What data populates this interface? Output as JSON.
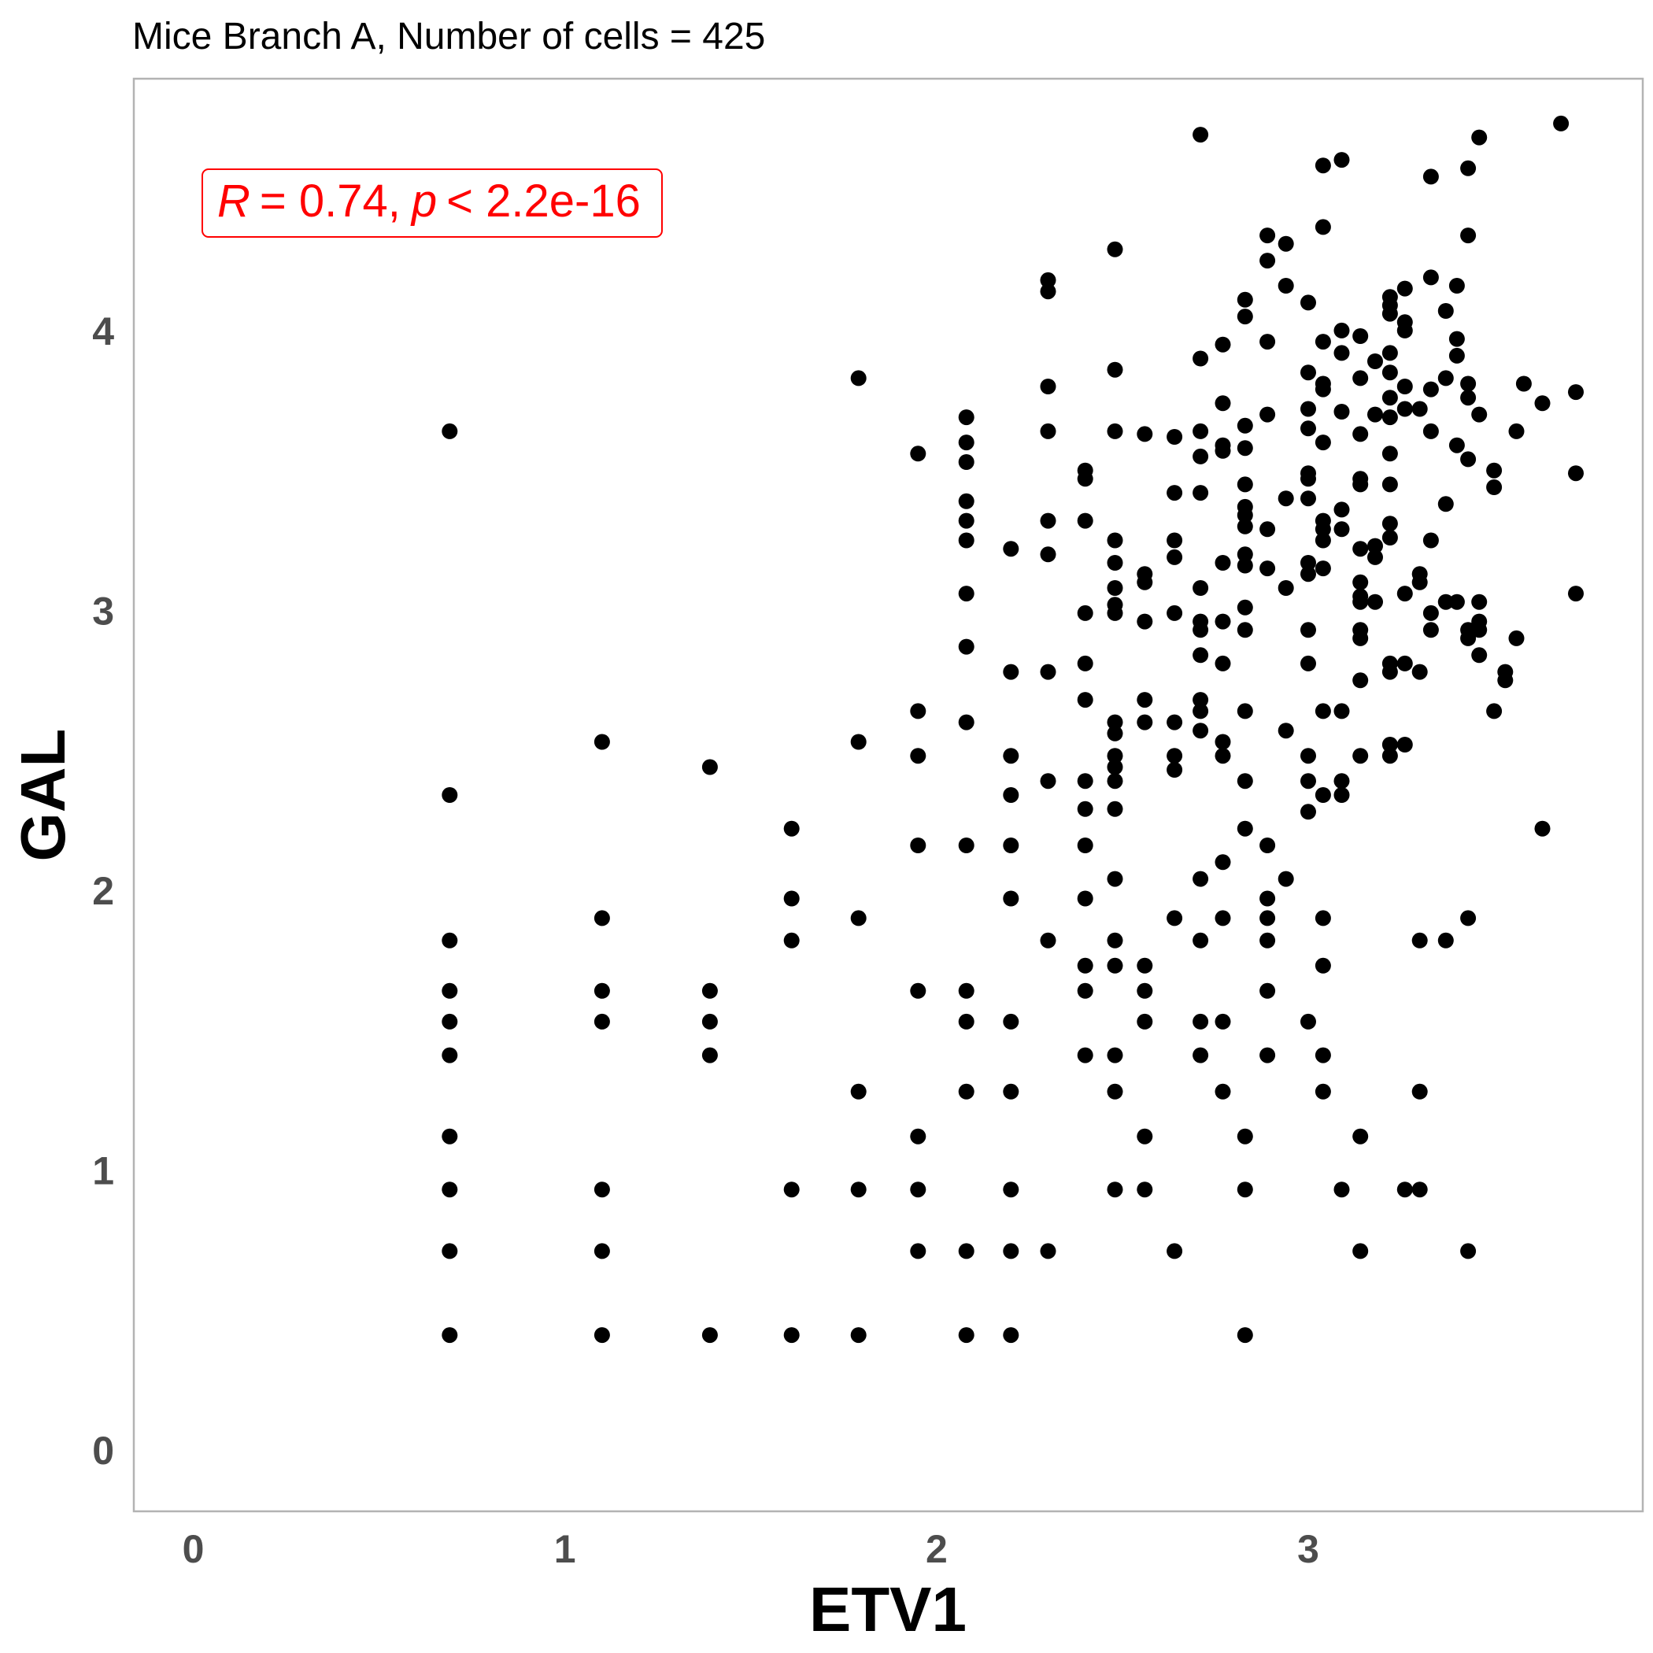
{
  "chart_data": {
    "type": "scatter",
    "title": "Mice Branch A, Number of cells = 425",
    "xlabel": "ETV1",
    "ylabel": "GAL",
    "xlim": [
      -0.16,
      3.9
    ],
    "ylim": [
      -0.22,
      4.9
    ],
    "x_ticks": [
      0,
      1,
      2,
      3
    ],
    "y_ticks": [
      0,
      1,
      2,
      3,
      4
    ],
    "grid": false,
    "point_color": "#000000",
    "annotation": {
      "r_label": "R",
      "r_value": "= 0.74,",
      "p_label": "p",
      "p_value": "< 2.2e-16",
      "color": "#ff0000"
    },
    "points": [
      [
        0.69,
        3.64
      ],
      [
        0.69,
        2.34
      ],
      [
        0.69,
        1.82
      ],
      [
        0.69,
        1.64
      ],
      [
        0.69,
        1.53
      ],
      [
        0.69,
        1.41
      ],
      [
        0.69,
        1.12
      ],
      [
        0.69,
        0.93
      ],
      [
        0.69,
        0.71
      ],
      [
        0.69,
        0.41
      ],
      [
        1.1,
        2.53
      ],
      [
        1.1,
        1.9
      ],
      [
        1.1,
        1.64
      ],
      [
        1.1,
        1.53
      ],
      [
        1.1,
        0.93
      ],
      [
        1.1,
        0.71
      ],
      [
        1.1,
        0.41
      ],
      [
        1.39,
        2.44
      ],
      [
        1.39,
        1.64
      ],
      [
        1.39,
        1.53
      ],
      [
        1.39,
        1.41
      ],
      [
        1.39,
        0.41
      ],
      [
        1.61,
        2.22
      ],
      [
        1.61,
        1.97
      ],
      [
        1.61,
        1.82
      ],
      [
        1.61,
        0.93
      ],
      [
        1.61,
        0.41
      ],
      [
        1.79,
        3.83
      ],
      [
        1.79,
        2.53
      ],
      [
        1.79,
        1.9
      ],
      [
        1.79,
        1.28
      ],
      [
        1.79,
        0.93
      ],
      [
        1.79,
        0.41
      ],
      [
        1.95,
        3.56
      ],
      [
        1.95,
        2.64
      ],
      [
        1.95,
        2.48
      ],
      [
        1.95,
        2.16
      ],
      [
        1.95,
        1.64
      ],
      [
        1.95,
        1.12
      ],
      [
        1.95,
        0.93
      ],
      [
        1.95,
        0.71
      ],
      [
        2.08,
        3.69
      ],
      [
        2.08,
        3.6
      ],
      [
        2.08,
        3.53
      ],
      [
        2.08,
        3.39
      ],
      [
        2.08,
        3.32
      ],
      [
        2.08,
        3.25
      ],
      [
        2.08,
        3.06
      ],
      [
        2.08,
        2.87
      ],
      [
        2.08,
        2.6
      ],
      [
        2.08,
        2.16
      ],
      [
        2.08,
        1.64
      ],
      [
        2.08,
        1.53
      ],
      [
        2.08,
        1.28
      ],
      [
        2.08,
        0.71
      ],
      [
        2.08,
        0.41
      ],
      [
        2.2,
        3.22
      ],
      [
        2.2,
        2.78
      ],
      [
        2.2,
        2.48
      ],
      [
        2.2,
        2.34
      ],
      [
        2.2,
        2.16
      ],
      [
        2.2,
        1.97
      ],
      [
        2.2,
        1.53
      ],
      [
        2.2,
        1.28
      ],
      [
        2.2,
        0.93
      ],
      [
        2.2,
        0.71
      ],
      [
        2.2,
        0.41
      ],
      [
        2.3,
        4.18
      ],
      [
        2.3,
        4.14
      ],
      [
        2.3,
        3.8
      ],
      [
        2.3,
        3.64
      ],
      [
        2.3,
        3.32
      ],
      [
        2.3,
        3.2
      ],
      [
        2.3,
        2.78
      ],
      [
        2.3,
        2.39
      ],
      [
        2.3,
        1.82
      ],
      [
        2.3,
        0.71
      ],
      [
        2.4,
        3.5
      ],
      [
        2.4,
        3.47
      ],
      [
        2.4,
        3.32
      ],
      [
        2.4,
        2.99
      ],
      [
        2.4,
        2.81
      ],
      [
        2.4,
        2.68
      ],
      [
        2.4,
        2.39
      ],
      [
        2.4,
        2.29
      ],
      [
        2.4,
        2.16
      ],
      [
        2.4,
        1.97
      ],
      [
        2.4,
        1.73
      ],
      [
        2.4,
        1.64
      ],
      [
        2.4,
        1.41
      ],
      [
        2.48,
        4.29
      ],
      [
        2.48,
        3.86
      ],
      [
        2.48,
        3.64
      ],
      [
        2.48,
        3.25
      ],
      [
        2.48,
        3.17
      ],
      [
        2.48,
        3.08
      ],
      [
        2.48,
        3.02
      ],
      [
        2.48,
        2.99
      ],
      [
        2.48,
        2.6
      ],
      [
        2.48,
        2.56
      ],
      [
        2.48,
        2.48
      ],
      [
        2.48,
        2.44
      ],
      [
        2.48,
        2.39
      ],
      [
        2.48,
        2.29
      ],
      [
        2.48,
        2.04
      ],
      [
        2.48,
        1.82
      ],
      [
        2.48,
        1.73
      ],
      [
        2.48,
        1.41
      ],
      [
        2.48,
        1.28
      ],
      [
        2.48,
        0.93
      ],
      [
        2.56,
        3.63
      ],
      [
        2.56,
        3.13
      ],
      [
        2.56,
        3.1
      ],
      [
        2.56,
        2.96
      ],
      [
        2.56,
        2.68
      ],
      [
        2.56,
        2.6
      ],
      [
        2.56,
        1.73
      ],
      [
        2.56,
        1.64
      ],
      [
        2.56,
        1.53
      ],
      [
        2.56,
        1.12
      ],
      [
        2.56,
        0.93
      ],
      [
        2.64,
        3.62
      ],
      [
        2.64,
        3.42
      ],
      [
        2.64,
        3.25
      ],
      [
        2.64,
        3.19
      ],
      [
        2.64,
        2.99
      ],
      [
        2.64,
        2.6
      ],
      [
        2.64,
        2.48
      ],
      [
        2.64,
        2.43
      ],
      [
        2.64,
        1.9
      ],
      [
        2.64,
        0.71
      ],
      [
        2.71,
        4.7
      ],
      [
        2.71,
        3.9
      ],
      [
        2.71,
        3.64
      ],
      [
        2.71,
        3.55
      ],
      [
        2.71,
        3.42
      ],
      [
        2.71,
        3.08
      ],
      [
        2.71,
        2.96
      ],
      [
        2.71,
        2.93
      ],
      [
        2.71,
        2.84
      ],
      [
        2.71,
        2.68
      ],
      [
        2.71,
        2.64
      ],
      [
        2.71,
        2.57
      ],
      [
        2.71,
        2.04
      ],
      [
        2.71,
        1.82
      ],
      [
        2.71,
        1.53
      ],
      [
        2.71,
        1.41
      ],
      [
        2.77,
        3.95
      ],
      [
        2.77,
        3.74
      ],
      [
        2.77,
        3.59
      ],
      [
        2.77,
        3.57
      ],
      [
        2.77,
        3.17
      ],
      [
        2.77,
        2.96
      ],
      [
        2.77,
        2.81
      ],
      [
        2.77,
        2.53
      ],
      [
        2.77,
        2.48
      ],
      [
        2.77,
        2.1
      ],
      [
        2.77,
        1.9
      ],
      [
        2.77,
        1.53
      ],
      [
        2.77,
        1.28
      ],
      [
        2.83,
        4.11
      ],
      [
        2.83,
        4.05
      ],
      [
        2.83,
        3.66
      ],
      [
        2.83,
        3.58
      ],
      [
        2.83,
        3.45
      ],
      [
        2.83,
        3.37
      ],
      [
        2.83,
        3.34
      ],
      [
        2.83,
        3.3
      ],
      [
        2.83,
        3.2
      ],
      [
        2.83,
        3.16
      ],
      [
        2.83,
        3.01
      ],
      [
        2.83,
        2.93
      ],
      [
        2.83,
        2.64
      ],
      [
        2.83,
        2.39
      ],
      [
        2.83,
        2.22
      ],
      [
        2.83,
        1.12
      ],
      [
        2.83,
        0.93
      ],
      [
        2.83,
        0.41
      ],
      [
        2.89,
        4.34
      ],
      [
        2.89,
        4.25
      ],
      [
        2.89,
        3.96
      ],
      [
        2.89,
        3.7
      ],
      [
        2.89,
        3.29
      ],
      [
        2.89,
        3.15
      ],
      [
        2.89,
        2.16
      ],
      [
        2.89,
        1.97
      ],
      [
        2.89,
        1.9
      ],
      [
        2.89,
        1.82
      ],
      [
        2.89,
        1.64
      ],
      [
        2.89,
        1.41
      ],
      [
        2.94,
        4.31
      ],
      [
        2.94,
        4.16
      ],
      [
        2.94,
        3.4
      ],
      [
        2.94,
        3.08
      ],
      [
        2.94,
        2.57
      ],
      [
        2.94,
        2.04
      ],
      [
        3.0,
        4.1
      ],
      [
        3.0,
        3.85
      ],
      [
        3.0,
        3.72
      ],
      [
        3.0,
        3.65
      ],
      [
        3.0,
        3.49
      ],
      [
        3.0,
        3.47
      ],
      [
        3.0,
        3.4
      ],
      [
        3.0,
        3.17
      ],
      [
        3.0,
        3.13
      ],
      [
        3.0,
        2.93
      ],
      [
        3.0,
        2.81
      ],
      [
        3.0,
        2.48
      ],
      [
        3.0,
        2.39
      ],
      [
        3.0,
        2.28
      ],
      [
        3.0,
        1.53
      ],
      [
        3.04,
        4.59
      ],
      [
        3.04,
        4.37
      ],
      [
        3.04,
        3.96
      ],
      [
        3.04,
        3.81
      ],
      [
        3.04,
        3.79
      ],
      [
        3.04,
        3.6
      ],
      [
        3.04,
        3.32
      ],
      [
        3.04,
        3.29
      ],
      [
        3.04,
        3.25
      ],
      [
        3.04,
        3.15
      ],
      [
        3.04,
        2.64
      ],
      [
        3.04,
        2.34
      ],
      [
        3.04,
        1.9
      ],
      [
        3.04,
        1.73
      ],
      [
        3.04,
        1.41
      ],
      [
        3.04,
        1.28
      ],
      [
        3.09,
        4.61
      ],
      [
        3.09,
        4.0
      ],
      [
        3.09,
        3.92
      ],
      [
        3.09,
        3.71
      ],
      [
        3.09,
        3.36
      ],
      [
        3.09,
        3.29
      ],
      [
        3.09,
        2.64
      ],
      [
        3.09,
        2.39
      ],
      [
        3.09,
        2.34
      ],
      [
        3.09,
        0.93
      ],
      [
        3.14,
        3.98
      ],
      [
        3.14,
        3.83
      ],
      [
        3.14,
        3.63
      ],
      [
        3.14,
        3.47
      ],
      [
        3.14,
        3.45
      ],
      [
        3.14,
        3.22
      ],
      [
        3.14,
        3.1
      ],
      [
        3.14,
        3.05
      ],
      [
        3.14,
        3.03
      ],
      [
        3.14,
        2.93
      ],
      [
        3.14,
        2.9
      ],
      [
        3.14,
        2.75
      ],
      [
        3.14,
        2.48
      ],
      [
        3.14,
        1.12
      ],
      [
        3.14,
        0.71
      ],
      [
        3.18,
        3.89
      ],
      [
        3.18,
        3.7
      ],
      [
        3.18,
        3.23
      ],
      [
        3.18,
        3.19
      ],
      [
        3.18,
        3.03
      ],
      [
        3.22,
        4.12
      ],
      [
        3.22,
        4.09
      ],
      [
        3.22,
        4.06
      ],
      [
        3.22,
        3.92
      ],
      [
        3.22,
        3.85
      ],
      [
        3.22,
        3.76
      ],
      [
        3.22,
        3.69
      ],
      [
        3.22,
        3.56
      ],
      [
        3.22,
        3.45
      ],
      [
        3.22,
        3.31
      ],
      [
        3.22,
        3.26
      ],
      [
        3.22,
        2.81
      ],
      [
        3.22,
        2.78
      ],
      [
        3.22,
        2.52
      ],
      [
        3.22,
        2.48
      ],
      [
        3.26,
        4.15
      ],
      [
        3.26,
        4.03
      ],
      [
        3.26,
        4.0
      ],
      [
        3.26,
        3.8
      ],
      [
        3.26,
        3.72
      ],
      [
        3.26,
        3.06
      ],
      [
        3.26,
        2.81
      ],
      [
        3.26,
        2.52
      ],
      [
        3.26,
        0.93
      ],
      [
        3.3,
        3.72
      ],
      [
        3.3,
        3.13
      ],
      [
        3.3,
        3.1
      ],
      [
        3.3,
        2.78
      ],
      [
        3.3,
        1.82
      ],
      [
        3.3,
        1.28
      ],
      [
        3.3,
        0.93
      ],
      [
        3.33,
        4.55
      ],
      [
        3.33,
        4.19
      ],
      [
        3.33,
        3.79
      ],
      [
        3.33,
        3.64
      ],
      [
        3.33,
        3.25
      ],
      [
        3.33,
        2.99
      ],
      [
        3.33,
        2.93
      ],
      [
        3.37,
        4.07
      ],
      [
        3.37,
        3.83
      ],
      [
        3.37,
        3.38
      ],
      [
        3.37,
        3.03
      ],
      [
        3.37,
        1.82
      ],
      [
        3.4,
        4.16
      ],
      [
        3.4,
        3.97
      ],
      [
        3.4,
        3.91
      ],
      [
        3.4,
        3.59
      ],
      [
        3.4,
        3.03
      ],
      [
        3.43,
        4.58
      ],
      [
        3.43,
        4.34
      ],
      [
        3.43,
        3.81
      ],
      [
        3.43,
        3.76
      ],
      [
        3.43,
        3.54
      ],
      [
        3.43,
        2.93
      ],
      [
        3.43,
        2.9
      ],
      [
        3.43,
        1.9
      ],
      [
        3.43,
        0.71
      ],
      [
        3.46,
        4.69
      ],
      [
        3.46,
        3.7
      ],
      [
        3.46,
        3.03
      ],
      [
        3.46,
        2.96
      ],
      [
        3.46,
        2.93
      ],
      [
        3.46,
        2.84
      ],
      [
        3.5,
        3.5
      ],
      [
        3.5,
        3.44
      ],
      [
        3.5,
        2.64
      ],
      [
        3.53,
        2.78
      ],
      [
        3.53,
        2.75
      ],
      [
        3.56,
        3.64
      ],
      [
        3.56,
        2.9
      ],
      [
        3.58,
        3.81
      ],
      [
        3.63,
        3.74
      ],
      [
        3.63,
        2.22
      ],
      [
        3.68,
        4.74
      ],
      [
        3.72,
        3.78
      ],
      [
        3.72,
        3.49
      ],
      [
        3.72,
        3.06
      ]
    ]
  }
}
